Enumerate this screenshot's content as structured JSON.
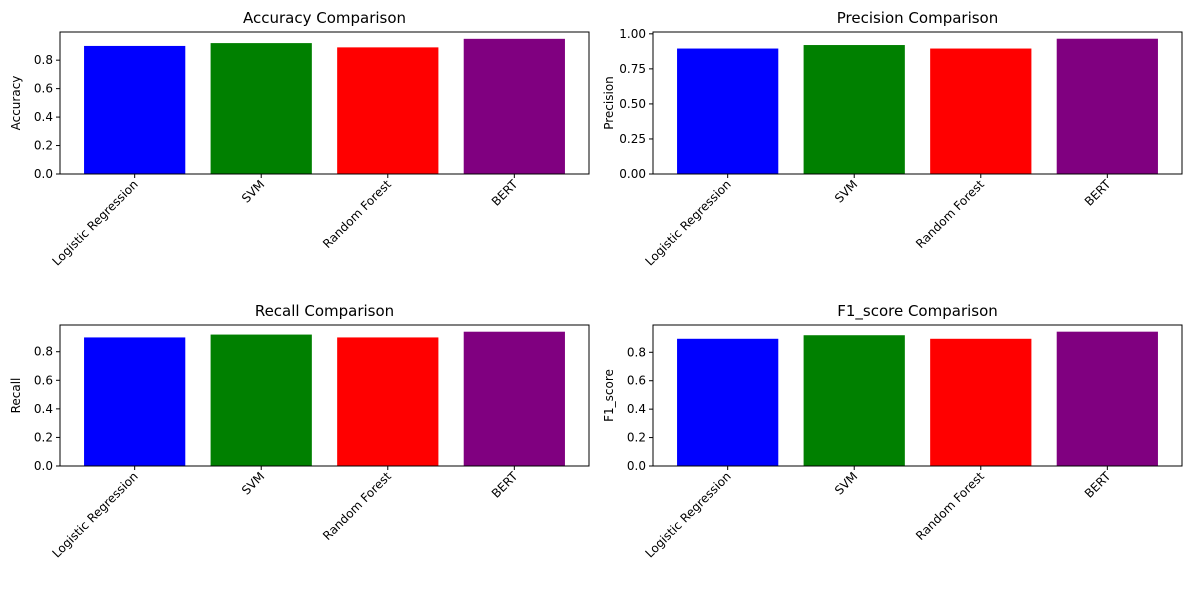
{
  "chart_data": [
    {
      "type": "bar",
      "title": "Accuracy Comparison",
      "xlabel": "",
      "ylabel": "Accuracy",
      "categories": [
        "Logistic Regression",
        "SVM",
        "Random Forest",
        "BERT"
      ],
      "values": [
        0.9,
        0.92,
        0.89,
        0.95
      ],
      "colors": [
        "#0000ff",
        "#008000",
        "#ff0000",
        "#800080"
      ],
      "ylim": [
        0,
        0.998
      ],
      "yticks": [
        0.0,
        0.2,
        0.4,
        0.6,
        0.8
      ],
      "ytick_labels": [
        "0.0",
        "0.2",
        "0.4",
        "0.6",
        "0.8"
      ],
      "grid": false
    },
    {
      "type": "bar",
      "title": "Precision Comparison",
      "xlabel": "",
      "ylabel": "Precision",
      "categories": [
        "Logistic Regression",
        "SVM",
        "Random Forest",
        "BERT"
      ],
      "values": [
        0.895,
        0.92,
        0.895,
        0.965
      ],
      "colors": [
        "#0000ff",
        "#008000",
        "#ff0000",
        "#800080"
      ],
      "ylim": [
        0,
        1.013
      ],
      "yticks": [
        0.0,
        0.25,
        0.5,
        0.75,
        1.0
      ],
      "ytick_labels": [
        "0.00",
        "0.25",
        "0.50",
        "0.75",
        "1.00"
      ],
      "grid": false
    },
    {
      "type": "bar",
      "title": "Recall Comparison",
      "xlabel": "",
      "ylabel": "Recall",
      "categories": [
        "Logistic Regression",
        "SVM",
        "Random Forest",
        "BERT"
      ],
      "values": [
        0.9,
        0.92,
        0.9,
        0.94
      ],
      "colors": [
        "#0000ff",
        "#008000",
        "#ff0000",
        "#800080"
      ],
      "ylim": [
        0,
        0.987
      ],
      "yticks": [
        0.0,
        0.2,
        0.4,
        0.6,
        0.8
      ],
      "ytick_labels": [
        "0.0",
        "0.2",
        "0.4",
        "0.6",
        "0.8"
      ],
      "grid": false
    },
    {
      "type": "bar",
      "title": "F1_score Comparison",
      "xlabel": "",
      "ylabel": "F1_score",
      "categories": [
        "Logistic Regression",
        "SVM",
        "Random Forest",
        "BERT"
      ],
      "values": [
        0.895,
        0.92,
        0.895,
        0.945
      ],
      "colors": [
        "#0000ff",
        "#008000",
        "#ff0000",
        "#800080"
      ],
      "ylim": [
        0,
        0.992
      ],
      "yticks": [
        0.0,
        0.2,
        0.4,
        0.6,
        0.8
      ],
      "ytick_labels": [
        "0.0",
        "0.2",
        "0.4",
        "0.6",
        "0.8"
      ],
      "grid": false
    }
  ]
}
